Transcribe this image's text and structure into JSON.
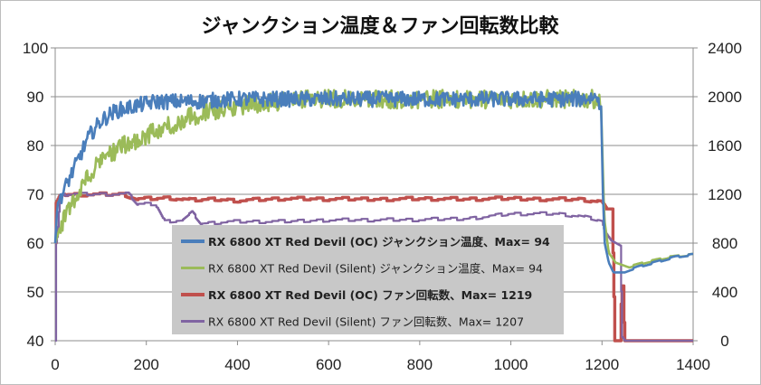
{
  "chart_data": {
    "type": "line",
    "title": "ジャンクション温度＆ファン回転数比較",
    "xlabel": "",
    "ylabel": "",
    "y2label": "",
    "xlim": [
      0,
      1400
    ],
    "ylim": [
      40,
      100
    ],
    "y2lim": [
      0,
      2400
    ],
    "x_ticks": [
      "0",
      "200",
      "400",
      "600",
      "800",
      "1000",
      "1200",
      "1400"
    ],
    "y_ticks": [
      "40",
      "50",
      "60",
      "70",
      "80",
      "90",
      "100"
    ],
    "y2_ticks": [
      "0",
      "400",
      "800",
      "1200",
      "1600",
      "2000",
      "2400"
    ],
    "grid": {
      "horizontal": true,
      "vertical": false
    },
    "legend_position": "bottom-center",
    "series": [
      {
        "name": "RX 6800 XT Red Devil (OC) ジャンクション温度、Max= 94",
        "axis": "left",
        "color": "#4a7ebb",
        "bold": true,
        "points": [
          [
            0,
            60
          ],
          [
            5,
            68
          ],
          [
            15,
            70
          ],
          [
            30,
            73
          ],
          [
            50,
            77
          ],
          [
            75,
            82
          ],
          [
            100,
            85
          ],
          [
            130,
            87
          ],
          [
            170,
            88
          ],
          [
            220,
            89
          ],
          [
            300,
            89
          ],
          [
            400,
            89.5
          ],
          [
            600,
            89.5
          ],
          [
            800,
            89.5
          ],
          [
            1000,
            89.5
          ],
          [
            1150,
            89.5
          ],
          [
            1190,
            90
          ],
          [
            1198,
            88
          ],
          [
            1202,
            70
          ],
          [
            1206,
            60
          ],
          [
            1215,
            56
          ],
          [
            1225,
            54
          ],
          [
            1250,
            54
          ],
          [
            1280,
            55
          ],
          [
            1320,
            56
          ],
          [
            1360,
            57
          ],
          [
            1400,
            57.5
          ]
        ]
      },
      {
        "name": "RX 6800 XT Red Devil (Silent) ジャンクション温度、Max= 94",
        "axis": "left",
        "color": "#9bbb59",
        "bold": false,
        "points": [
          [
            0,
            60
          ],
          [
            10,
            63
          ],
          [
            30,
            67
          ],
          [
            60,
            72
          ],
          [
            100,
            77
          ],
          [
            150,
            80
          ],
          [
            200,
            82
          ],
          [
            250,
            84
          ],
          [
            300,
            86
          ],
          [
            350,
            87
          ],
          [
            400,
            88
          ],
          [
            450,
            88.5
          ],
          [
            500,
            89.2
          ],
          [
            600,
            89.5
          ],
          [
            800,
            89.5
          ],
          [
            1000,
            89.5
          ],
          [
            1150,
            89.5
          ],
          [
            1190,
            89.5
          ],
          [
            1198,
            88
          ],
          [
            1205,
            65
          ],
          [
            1215,
            58
          ],
          [
            1230,
            56
          ],
          [
            1260,
            55
          ],
          [
            1300,
            56
          ],
          [
            1350,
            57
          ],
          [
            1400,
            57.5
          ]
        ]
      },
      {
        "name": "RX 6800 XT Red Devil (OC) ファン回転数、Max= 1219",
        "axis": "right",
        "color": "#c0504d",
        "bold": true,
        "points": [
          [
            0,
            800
          ],
          [
            2,
            1130
          ],
          [
            10,
            1190
          ],
          [
            20,
            1200
          ],
          [
            150,
            1200
          ],
          [
            180,
            1160
          ],
          [
            250,
            1170
          ],
          [
            300,
            1150
          ],
          [
            350,
            1160
          ],
          [
            400,
            1150
          ],
          [
            500,
            1165
          ],
          [
            600,
            1160
          ],
          [
            700,
            1160
          ],
          [
            800,
            1165
          ],
          [
            900,
            1160
          ],
          [
            1000,
            1165
          ],
          [
            1100,
            1160
          ],
          [
            1150,
            1160
          ],
          [
            1200,
            1140
          ],
          [
            1210,
            1080
          ],
          [
            1222,
            1080
          ],
          [
            1228,
            0
          ],
          [
            1240,
            0
          ],
          [
            1243,
            450
          ],
          [
            1246,
            450
          ],
          [
            1249,
            0
          ],
          [
            1400,
            0
          ]
        ]
      },
      {
        "name": "RX 6800 XT Red Devil (Silent) ファン回転数、Max= 1207",
        "axis": "right",
        "color": "#8064a2",
        "bold": false,
        "points": [
          [
            0,
            0
          ],
          [
            1,
            790
          ],
          [
            5,
            870
          ],
          [
            10,
            1180
          ],
          [
            20,
            1200
          ],
          [
            160,
            1200
          ],
          [
            180,
            1120
          ],
          [
            220,
            1120
          ],
          [
            240,
            980
          ],
          [
            280,
            990
          ],
          [
            300,
            1050
          ],
          [
            320,
            960
          ],
          [
            380,
            975
          ],
          [
            500,
            975
          ],
          [
            600,
            990
          ],
          [
            800,
            990
          ],
          [
            900,
            1000
          ],
          [
            1000,
            1040
          ],
          [
            1100,
            1040
          ],
          [
            1150,
            1020
          ],
          [
            1200,
            980
          ],
          [
            1205,
            900
          ],
          [
            1220,
            820
          ],
          [
            1230,
            800
          ],
          [
            1240,
            780
          ],
          [
            1244,
            30
          ],
          [
            1250,
            0
          ],
          [
            1400,
            0
          ]
        ]
      }
    ]
  }
}
